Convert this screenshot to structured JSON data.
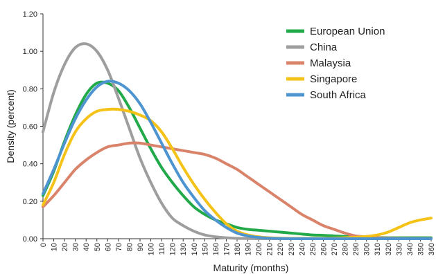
{
  "chart_data": {
    "type": "line",
    "xlabel": "Maturity (months)",
    "ylabel": "Density (percent)",
    "xlim": [
      0,
      360
    ],
    "ylim": [
      0,
      1.2
    ],
    "x_ticks": [
      "0",
      "10",
      "20",
      "30",
      "40",
      "50",
      "60",
      "70",
      "80",
      "90",
      "100",
      "110",
      "120",
      "130",
      "140",
      "150",
      "160",
      "170",
      "180",
      "190",
      "200",
      "210",
      "220",
      "230",
      "240",
      "250",
      "260",
      "270",
      "280",
      "290",
      "300",
      "310",
      "320",
      "330",
      "340",
      "350",
      "360"
    ],
    "y_ticks": [
      "0.00",
      "0.20",
      "0.40",
      "0.60",
      "0.80",
      "1.00",
      "1.20"
    ],
    "grid": false,
    "legend_position": "top-right",
    "x": [
      0,
      10,
      20,
      30,
      40,
      50,
      60,
      70,
      80,
      90,
      100,
      110,
      120,
      130,
      140,
      150,
      160,
      170,
      180,
      190,
      200,
      210,
      220,
      230,
      240,
      250,
      260,
      270,
      280,
      290,
      300,
      310,
      320,
      330,
      340,
      350,
      360
    ],
    "series": [
      {
        "name": "European Union",
        "color": "#22a94a",
        "values": [
          0.23,
          0.36,
          0.52,
          0.66,
          0.77,
          0.83,
          0.83,
          0.79,
          0.7,
          0.59,
          0.48,
          0.38,
          0.3,
          0.23,
          0.17,
          0.13,
          0.1,
          0.08,
          0.06,
          0.05,
          0.045,
          0.04,
          0.035,
          0.03,
          0.025,
          0.02,
          0.018,
          0.015,
          0.012,
          0.01,
          0.008,
          0.006,
          0.005,
          0.005,
          0.005,
          0.005,
          0.005
        ]
      },
      {
        "name": "China",
        "color": "#9e9e9e",
        "values": [
          0.57,
          0.78,
          0.93,
          1.02,
          1.04,
          1.0,
          0.9,
          0.75,
          0.59,
          0.43,
          0.3,
          0.19,
          0.11,
          0.07,
          0.04,
          0.02,
          0.01,
          0.005,
          0.002,
          0.001,
          0,
          0,
          0,
          0,
          0,
          0,
          0,
          0,
          0,
          0,
          0,
          0,
          0,
          0,
          0,
          0,
          0
        ]
      },
      {
        "name": "Malaysia",
        "color": "#d9846a",
        "values": [
          0.17,
          0.23,
          0.3,
          0.37,
          0.42,
          0.46,
          0.49,
          0.5,
          0.51,
          0.51,
          0.5,
          0.49,
          0.48,
          0.47,
          0.46,
          0.45,
          0.43,
          0.4,
          0.37,
          0.33,
          0.29,
          0.25,
          0.21,
          0.17,
          0.13,
          0.1,
          0.07,
          0.05,
          0.03,
          0.015,
          0.01,
          0.005,
          0.003,
          0.002,
          0.001,
          0.001,
          0.001
        ]
      },
      {
        "name": "Singapore",
        "color": "#f5c218",
        "values": [
          0.18,
          0.3,
          0.45,
          0.57,
          0.64,
          0.68,
          0.69,
          0.69,
          0.68,
          0.66,
          0.63,
          0.57,
          0.48,
          0.38,
          0.29,
          0.21,
          0.14,
          0.08,
          0.04,
          0.02,
          0.01,
          0.005,
          0.003,
          0.002,
          0.002,
          0.002,
          0.002,
          0.003,
          0.005,
          0.008,
          0.012,
          0.02,
          0.035,
          0.06,
          0.085,
          0.1,
          0.11
        ]
      },
      {
        "name": "South Africa",
        "color": "#4d94d1",
        "values": [
          0.24,
          0.37,
          0.51,
          0.64,
          0.74,
          0.81,
          0.84,
          0.83,
          0.79,
          0.72,
          0.62,
          0.51,
          0.4,
          0.3,
          0.22,
          0.15,
          0.1,
          0.06,
          0.03,
          0.015,
          0.007,
          0.003,
          0.001,
          0,
          0,
          0,
          0,
          0,
          0,
          0,
          0,
          0,
          0,
          0,
          0,
          0,
          0
        ]
      }
    ]
  }
}
